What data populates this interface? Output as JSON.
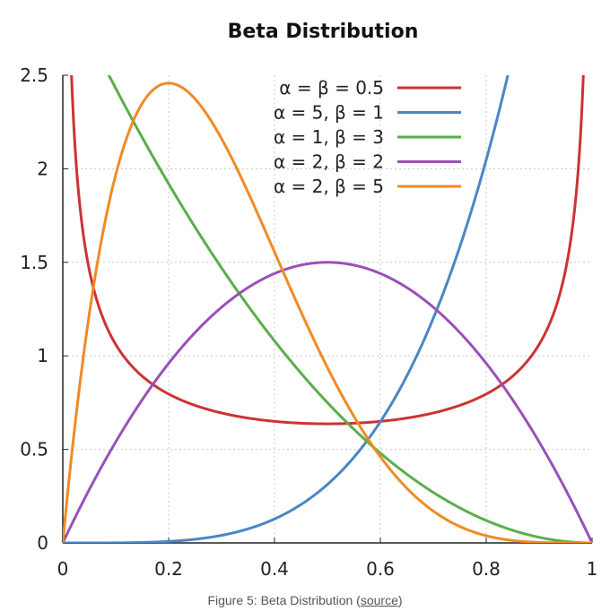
{
  "chart_data": {
    "type": "line",
    "title": "Beta Distribution",
    "xlabel": "",
    "ylabel": "",
    "xlim": [
      0,
      1
    ],
    "ylim": [
      0,
      2.5
    ],
    "x_ticks": [
      "0",
      "0.2",
      "0.4",
      "0.6",
      "0.8",
      "1"
    ],
    "y_ticks": [
      "0",
      "0.5",
      "1",
      "1.5",
      "2",
      "2.5"
    ],
    "grid": true,
    "legend_position": "top-right",
    "series": [
      {
        "name": "α = β = 0.5",
        "alpha": 0.5,
        "beta": 0.5,
        "color": "#cc3333"
      },
      {
        "name": "α = 5, β = 1",
        "alpha": 5,
        "beta": 1,
        "color": "#4a86c5"
      },
      {
        "name": "α = 1, β = 3",
        "alpha": 1,
        "beta": 3,
        "color": "#5aae4a"
      },
      {
        "name": "α = 2, β = 2",
        "alpha": 2,
        "beta": 2,
        "color": "#9a50b8"
      },
      {
        "name": "α = 2, β = 5",
        "alpha": 2,
        "beta": 5,
        "color": "#f08a24"
      }
    ]
  },
  "caption": {
    "prefix": "Figure 5: Beta Distribution (",
    "link_text": "source",
    "suffix": ")"
  }
}
